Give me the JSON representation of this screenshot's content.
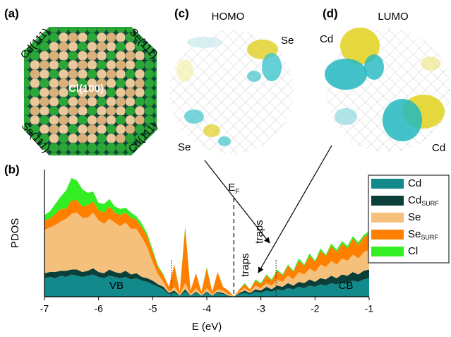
{
  "figure": {
    "panel_a": {
      "label": "(a)",
      "facets": [
        "Cd(111)",
        "Se(111)",
        "Se(111)",
        "Cd(111)"
      ],
      "center": "Cl(100)"
    },
    "panel_b": {
      "label": "(b)"
    },
    "panel_c": {
      "label": "(c)",
      "title": "HOMO",
      "sites": [
        "Se",
        "Se"
      ]
    },
    "panel_d": {
      "label": "(d)",
      "title": "LUMO",
      "sites": [
        "Cd",
        "Cd"
      ]
    }
  },
  "chart_data": {
    "type": "stacked_area",
    "x_label": "E (eV)",
    "y_label": "PDOS",
    "xlim": [
      -7,
      -1
    ],
    "xticks": [
      -7,
      -6,
      -5,
      -4,
      -3,
      -2,
      -1
    ],
    "ylim": [
      0,
      10
    ],
    "x": [
      -7.0,
      -6.9,
      -6.8,
      -6.7,
      -6.6,
      -6.5,
      -6.4,
      -6.3,
      -6.2,
      -6.1,
      -6.0,
      -5.9,
      -5.8,
      -5.7,
      -5.6,
      -5.5,
      -5.4,
      -5.3,
      -5.2,
      -5.1,
      -5.0,
      -4.9,
      -4.8,
      -4.7,
      -4.6,
      -4.5,
      -4.4,
      -4.3,
      -4.2,
      -4.1,
      -4.0,
      -3.9,
      -3.8,
      -3.7,
      -3.6,
      -3.5,
      -3.4,
      -3.3,
      -3.2,
      -3.1,
      -3.0,
      -2.9,
      -2.8,
      -2.7,
      -2.6,
      -2.5,
      -2.4,
      -2.3,
      -2.2,
      -2.1,
      -2.0,
      -1.9,
      -1.8,
      -1.7,
      -1.6,
      -1.5,
      -1.4,
      -1.3,
      -1.2,
      -1.1,
      -1.0
    ],
    "series": [
      {
        "name": "Cd",
        "color": "#12898a",
        "values": [
          1.5,
          1.6,
          1.5,
          1.7,
          1.6,
          1.8,
          1.7,
          1.6,
          1.7,
          1.8,
          1.6,
          1.5,
          1.7,
          1.6,
          1.5,
          1.6,
          1.4,
          1.5,
          1.3,
          1.2,
          1.0,
          0.8,
          0.6,
          0.2,
          0.3,
          0.1,
          0.4,
          0.1,
          0.3,
          0.1,
          0.3,
          0.1,
          0.3,
          0.2,
          0.1,
          0.0,
          0.2,
          0.3,
          0.2,
          0.4,
          0.3,
          0.5,
          0.4,
          0.6,
          0.5,
          0.7,
          0.6,
          0.8,
          0.7,
          0.9,
          0.8,
          1.0,
          0.9,
          1.1,
          1.0,
          1.2,
          1.1,
          1.3,
          1.2,
          1.4,
          1.5
        ]
      },
      {
        "name": "Cd",
        "name_sub": "SURF",
        "color": "#0b3f39",
        "values": [
          0.4,
          0.4,
          0.5,
          0.4,
          0.5,
          0.4,
          0.5,
          0.4,
          0.4,
          0.5,
          0.4,
          0.4,
          0.5,
          0.4,
          0.4,
          0.5,
          0.4,
          0.4,
          0.3,
          0.3,
          0.3,
          0.2,
          0.2,
          0.1,
          0.2,
          0.0,
          0.2,
          0.0,
          0.1,
          0.0,
          0.1,
          0.0,
          0.1,
          0.1,
          0.0,
          0.0,
          0.1,
          0.2,
          0.1,
          0.2,
          0.2,
          0.3,
          0.2,
          0.3,
          0.3,
          0.4,
          0.3,
          0.4,
          0.4,
          0.5,
          0.4,
          0.5,
          0.5,
          0.6,
          0.5,
          0.6,
          0.6,
          0.7,
          0.6,
          0.7,
          0.7
        ]
      },
      {
        "name": "Se",
        "color": "#f5c07c",
        "values": [
          3.5,
          3.6,
          3.8,
          4.0,
          4.2,
          4.5,
          4.6,
          4.4,
          4.3,
          4.5,
          4.2,
          4.0,
          4.1,
          4.0,
          3.8,
          3.9,
          3.7,
          3.6,
          3.2,
          2.5,
          1.5,
          0.8,
          0.4,
          0.1,
          0.3,
          0.1,
          0.5,
          0.1,
          0.3,
          0.1,
          0.3,
          0.1,
          0.2,
          0.2,
          0.1,
          0.0,
          0.1,
          0.2,
          0.1,
          0.3,
          0.2,
          0.3,
          0.3,
          0.5,
          0.4,
          0.6,
          0.5,
          0.8,
          0.7,
          0.9,
          0.8,
          1.1,
          1.0,
          1.2,
          1.1,
          1.3,
          1.2,
          1.4,
          1.3,
          1.5,
          1.6
        ]
      },
      {
        "name": "Se",
        "name_sub": "SURF",
        "color": "#ff8000",
        "values": [
          0.8,
          0.7,
          0.9,
          1.0,
          0.8,
          1.1,
          1.0,
          0.9,
          1.0,
          0.9,
          0.8,
          0.9,
          1.0,
          0.8,
          0.9,
          0.8,
          0.9,
          0.7,
          0.8,
          0.9,
          0.8,
          0.6,
          0.5,
          0.4,
          1.8,
          0.2,
          4.5,
          0.3,
          1.2,
          0.2,
          1.6,
          0.2,
          1.4,
          0.3,
          0.3,
          0.0,
          0.2,
          0.3,
          0.2,
          0.4,
          0.3,
          0.6,
          0.4,
          0.7,
          0.5,
          0.8,
          0.6,
          0.9,
          0.7,
          1.0,
          0.8,
          1.1,
          0.9,
          1.2,
          1.0,
          1.2,
          1.0,
          1.3,
          1.1,
          1.2,
          1.3
        ]
      },
      {
        "name": "Cl",
        "color": "#33ee22",
        "values": [
          0.4,
          0.6,
          0.8,
          1.0,
          1.5,
          1.8,
          1.6,
          1.4,
          1.0,
          0.8,
          0.6,
          0.7,
          0.6,
          0.5,
          0.5,
          0.4,
          0.4,
          0.3,
          0.3,
          0.2,
          0.2,
          0.1,
          0.1,
          0,
          0,
          0,
          0.1,
          0,
          0,
          0,
          0.1,
          0,
          0,
          0,
          0,
          0,
          0,
          0.1,
          0,
          0.1,
          0.1,
          0.1,
          0.1,
          0.1,
          0.1,
          0.1,
          0.1,
          0.2,
          0.1,
          0.2,
          0.1,
          0.2,
          0.1,
          0.2,
          0.2,
          0.2,
          0.2,
          0.2,
          0.2,
          0.2,
          0.2
        ]
      }
    ],
    "fermi_level": -3.5,
    "fermi_label": "E",
    "fermi_label_sub": "F",
    "vb_edge": -4.65,
    "cb_edge": -2.72,
    "band_labels": [
      "VB",
      "CB"
    ],
    "trap_labels": [
      "traps",
      "traps"
    ]
  }
}
